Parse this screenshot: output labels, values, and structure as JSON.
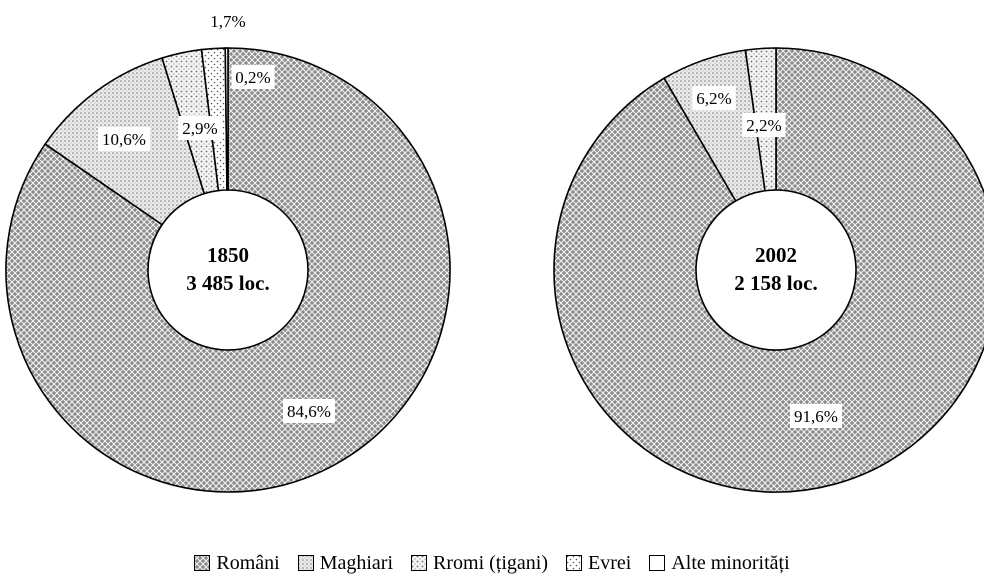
{
  "chart_data": [
    {
      "type": "pie",
      "variant": "donut",
      "center_label": [
        "1850",
        "3 485 loc."
      ],
      "slices": [
        {
          "category": "Români",
          "value": 84.6,
          "label": "84,6%"
        },
        {
          "category": "Maghiari",
          "value": 10.6,
          "label": "10,6%"
        },
        {
          "category": "Rromi (țigani)",
          "value": 2.9,
          "label": "2,9%"
        },
        {
          "category": "Evrei",
          "value": 1.7,
          "label": "1,7%"
        },
        {
          "category": "Alte minorități",
          "value": 0.2,
          "label": "0,2%"
        }
      ]
    },
    {
      "type": "pie",
      "variant": "donut",
      "center_label": [
        "2002",
        "2 158 loc."
      ],
      "slices": [
        {
          "category": "Români",
          "value": 91.6,
          "label": "91,6%"
        },
        {
          "category": "Maghiari",
          "value": 6.2,
          "label": "6,2%"
        },
        {
          "category": "Rromi (țigani)",
          "value": 2.2,
          "label": "2,2%"
        }
      ]
    }
  ],
  "legend": {
    "placement": "bottom",
    "items": [
      {
        "label": "Români",
        "pattern": "dense-diamond"
      },
      {
        "label": "Maghiari",
        "pattern": "medium-grid"
      },
      {
        "label": "Rromi (țigani)",
        "pattern": "light-dots"
      },
      {
        "label": "Evrei",
        "pattern": "sparse-dots"
      },
      {
        "label": "Alte minorități",
        "pattern": "blank"
      }
    ]
  }
}
